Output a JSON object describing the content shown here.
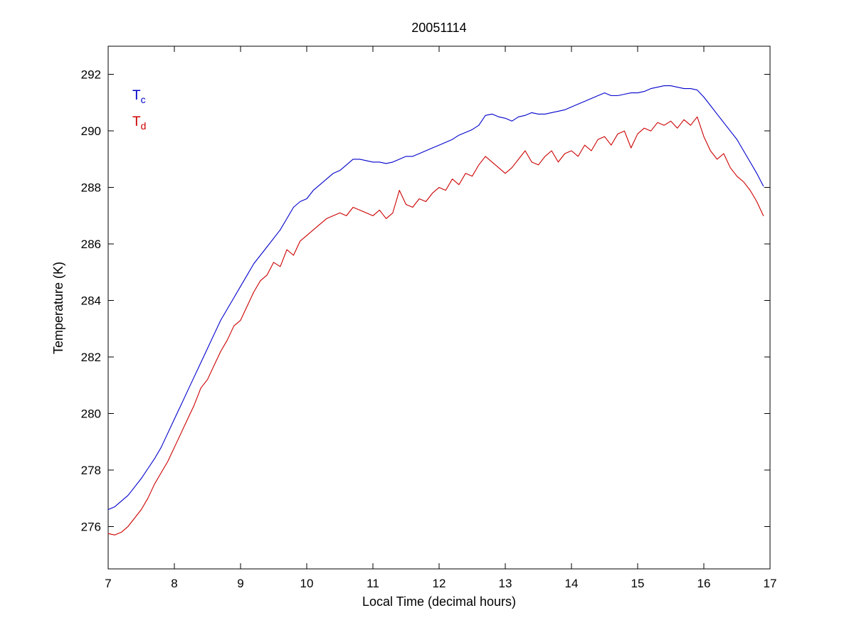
{
  "figure": {
    "background": "#ffffff",
    "axes_color": "#000000"
  },
  "legend": {
    "entries": [
      {
        "main": "T",
        "sub": "c",
        "color": "#0000CC"
      },
      {
        "main": "T",
        "sub": "d",
        "color": "#CC0000"
      }
    ]
  },
  "chart_data": {
    "type": "line",
    "title": "20051114",
    "xlabel": "Local Time (decimal hours)",
    "ylabel": "Temperature (K)",
    "xlim": [
      7,
      17
    ],
    "ylim": [
      274.5,
      293
    ],
    "xticks": [
      7,
      8,
      9,
      10,
      11,
      12,
      13,
      14,
      15,
      16,
      17
    ],
    "yticks": [
      276,
      278,
      280,
      282,
      284,
      286,
      288,
      290,
      292
    ],
    "grid": false,
    "legend_position": "top-left-inside",
    "x": [
      7.0,
      7.1,
      7.2,
      7.3,
      7.4,
      7.5,
      7.6,
      7.7,
      7.8,
      7.9,
      8.0,
      8.1,
      8.2,
      8.3,
      8.4,
      8.5,
      8.6,
      8.7,
      8.8,
      8.9,
      9.0,
      9.1,
      9.2,
      9.3,
      9.4,
      9.5,
      9.6,
      9.7,
      9.8,
      9.9,
      10.0,
      10.1,
      10.2,
      10.3,
      10.4,
      10.5,
      10.6,
      10.7,
      10.8,
      10.9,
      11.0,
      11.1,
      11.2,
      11.3,
      11.4,
      11.5,
      11.6,
      11.7,
      11.8,
      11.9,
      12.0,
      12.1,
      12.2,
      12.3,
      12.4,
      12.5,
      12.6,
      12.7,
      12.8,
      12.9,
      13.0,
      13.1,
      13.2,
      13.3,
      13.4,
      13.5,
      13.6,
      13.7,
      13.8,
      13.9,
      14.0,
      14.1,
      14.2,
      14.3,
      14.4,
      14.5,
      14.6,
      14.7,
      14.8,
      14.9,
      15.0,
      15.1,
      15.2,
      15.3,
      15.4,
      15.5,
      15.6,
      15.7,
      15.8,
      15.9,
      16.0,
      16.1,
      16.2,
      16.3,
      16.4,
      16.5,
      16.6,
      16.7,
      16.8,
      16.9
    ],
    "series": [
      {
        "name": "Tc",
        "label": "T_c",
        "color": "#0000CC",
        "values": [
          276.6,
          276.7,
          276.9,
          277.1,
          277.4,
          277.7,
          278.05,
          278.4,
          278.8,
          279.3,
          279.8,
          280.3,
          280.8,
          281.3,
          281.8,
          282.3,
          282.8,
          283.3,
          283.7,
          284.1,
          284.5,
          284.9,
          285.3,
          285.6,
          285.9,
          286.2,
          286.5,
          286.9,
          287.3,
          287.5,
          287.6,
          287.9,
          288.1,
          288.3,
          288.5,
          288.6,
          288.8,
          289.0,
          289.0,
          288.95,
          288.9,
          288.9,
          288.85,
          288.9,
          289.0,
          289.1,
          289.1,
          289.2,
          289.3,
          289.4,
          289.5,
          289.6,
          289.7,
          289.85,
          289.95,
          290.05,
          290.2,
          290.55,
          290.6,
          290.5,
          290.45,
          290.35,
          290.5,
          290.55,
          290.65,
          290.6,
          290.6,
          290.65,
          290.7,
          290.75,
          290.85,
          290.95,
          291.05,
          291.15,
          291.25,
          291.35,
          291.25,
          291.25,
          291.3,
          291.35,
          291.35,
          291.4,
          291.5,
          291.55,
          291.6,
          291.6,
          291.55,
          291.5,
          291.5,
          291.45,
          291.2,
          290.9,
          290.6,
          290.3,
          290.0,
          289.7,
          289.3,
          288.9,
          288.5,
          288.05
        ]
      },
      {
        "name": "Td",
        "label": "T_d",
        "color": "#CC0000",
        "values": [
          275.75,
          275.7,
          275.8,
          276.0,
          276.3,
          276.6,
          277.0,
          277.5,
          277.9,
          278.3,
          278.8,
          279.3,
          279.8,
          280.3,
          280.9,
          281.2,
          281.7,
          282.2,
          282.6,
          283.1,
          283.3,
          283.8,
          284.3,
          284.7,
          284.9,
          285.35,
          285.2,
          285.8,
          285.6,
          286.1,
          286.3,
          286.5,
          286.7,
          286.9,
          287.0,
          287.1,
          287.0,
          287.3,
          287.2,
          287.1,
          287.0,
          287.2,
          286.9,
          287.1,
          287.9,
          287.4,
          287.3,
          287.6,
          287.5,
          287.8,
          288.0,
          287.9,
          288.3,
          288.1,
          288.5,
          288.4,
          288.8,
          289.1,
          288.9,
          288.7,
          288.5,
          288.7,
          289.0,
          289.3,
          288.9,
          288.8,
          289.1,
          289.3,
          288.9,
          289.2,
          289.3,
          289.1,
          289.5,
          289.3,
          289.7,
          289.8,
          289.5,
          289.9,
          290.0,
          289.4,
          289.9,
          290.1,
          290.0,
          290.3,
          290.2,
          290.35,
          290.1,
          290.4,
          290.2,
          290.5,
          289.8,
          289.3,
          289.0,
          289.2,
          288.7,
          288.4,
          288.2,
          287.9,
          287.5,
          287.0
        ]
      }
    ]
  }
}
